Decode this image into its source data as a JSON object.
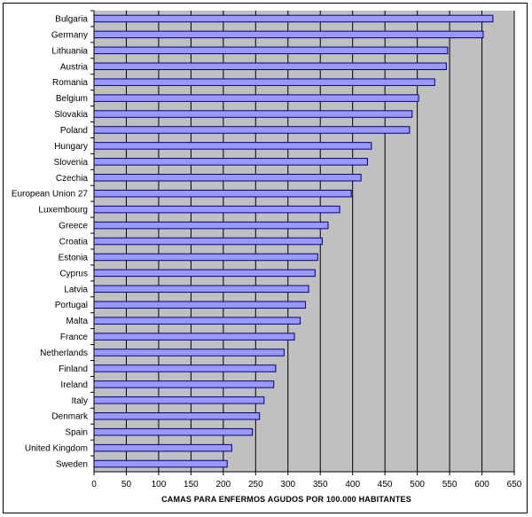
{
  "chart_data": {
    "type": "bar",
    "orientation": "horizontal",
    "xlabel": "CAMAS PARA ENFERMOS AGUDOS POR 100.000 HABITANTES",
    "xlim": [
      0,
      650
    ],
    "xticks": [
      0,
      50,
      100,
      150,
      200,
      250,
      300,
      350,
      400,
      450,
      500,
      550,
      600,
      650
    ],
    "grid": true,
    "legend": "none",
    "categories": [
      "Bulgaria",
      "Germany",
      "Lithuania",
      "Austria",
      "Romania",
      "Belgium",
      "Slovakia",
      "Poland",
      "Hungary",
      "Slovenia",
      "Czechia",
      "European Union 27",
      "Luxembourg",
      "Greece",
      "Croatia",
      "Estonia",
      "Cyprus",
      "Latvia",
      "Portugal",
      "Malta",
      "France",
      "Netherlands",
      "Finland",
      "Ireland",
      "Italy",
      "Denmark",
      "Spain",
      "United Kingdom",
      "Sweden"
    ],
    "values": [
      617,
      602,
      547,
      545,
      527,
      502,
      492,
      488,
      429,
      423,
      413,
      398,
      380,
      362,
      353,
      346,
      342,
      332,
      327,
      319,
      310,
      294,
      281,
      278,
      263,
      256,
      245,
      213,
      206
    ],
    "colors": {
      "bar_fill": "#9999ff",
      "bar_stroke": "#000080",
      "plot_background": "#c0c0c0",
      "gridline": "#000000"
    }
  }
}
